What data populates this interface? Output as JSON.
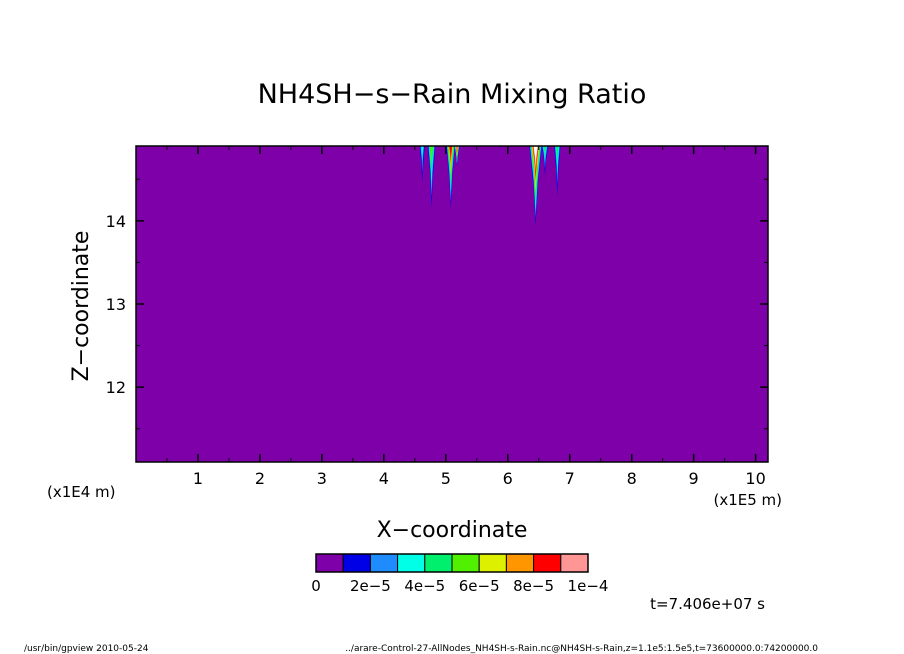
{
  "chart_data": {
    "type": "heatmap",
    "title": "NH4SH−s−Rain Mixing Ratio",
    "xlabel": "X−coordinate",
    "ylabel": "Z−coordinate",
    "x_scale_label": "(x1E5 m)",
    "y_scale_label": "(x1E4 m)",
    "xlim": [
      0,
      10.2
    ],
    "ylim": [
      11.1,
      14.9
    ],
    "x_ticks": [
      1,
      2,
      3,
      4,
      5,
      6,
      7,
      8,
      9,
      10
    ],
    "y_ticks": [
      12,
      13,
      14
    ],
    "background_color": "#7d00a8",
    "colorbar": {
      "colors": [
        "#7d00a8",
        "#0000e6",
        "#1e8cff",
        "#00ffe6",
        "#00f06e",
        "#50f000",
        "#dcf000",
        "#ff9600",
        "#ff0000",
        "#ff9696"
      ],
      "labels": [
        "0",
        "2e−5",
        "4e−5",
        "6e−5",
        "8e−5",
        "1e−4"
      ]
    },
    "features": [
      {
        "x_center": 4.62,
        "z_bottom": 14.45,
        "width": 0.08,
        "level": 3
      },
      {
        "x_center": 4.77,
        "z_bottom": 14.15,
        "width": 0.12,
        "level": 5
      },
      {
        "x_center": 5.08,
        "z_bottom": 14.15,
        "width": 0.14,
        "level": 8
      },
      {
        "x_center": 5.18,
        "z_bottom": 14.65,
        "width": 0.08,
        "level": 9
      },
      {
        "x_center": 6.45,
        "z_bottom": 13.95,
        "width": 0.2,
        "level": 10
      },
      {
        "x_center": 6.6,
        "z_bottom": 14.55,
        "width": 0.1,
        "level": 4
      },
      {
        "x_center": 6.8,
        "z_bottom": 14.3,
        "width": 0.1,
        "level": 4
      }
    ],
    "time_label": "t=7.406e+07 s"
  },
  "footer": {
    "left": "/usr/bin/gpview  2010-05-24",
    "right": "../arare-Control-27-AllNodes_NH4SH-s-Rain.nc@NH4SH-s-Rain,z=1.1e5:1.5e5,t=73600000.0:74200000.0"
  }
}
